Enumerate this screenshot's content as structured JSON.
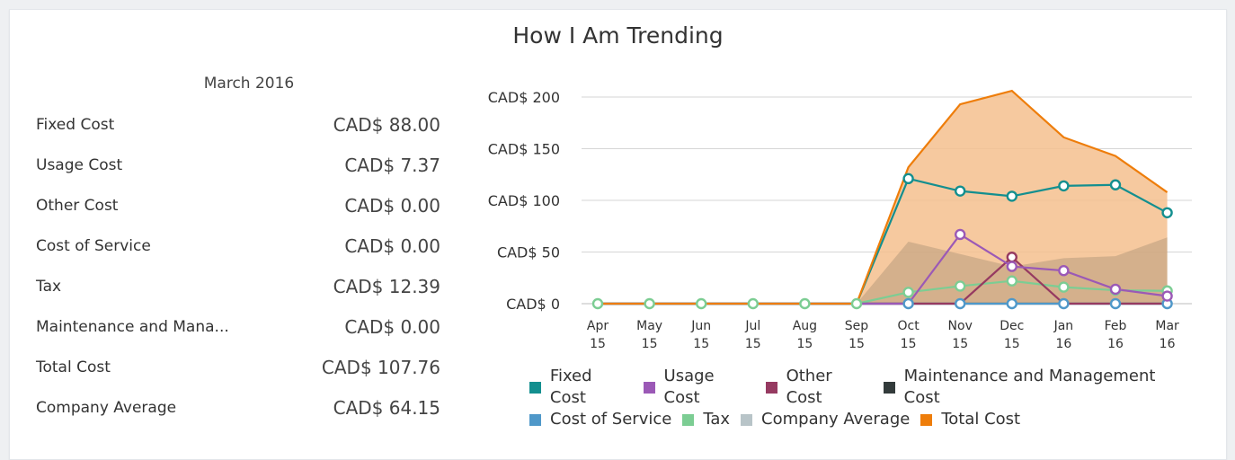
{
  "header": {
    "title": "How I Am Trending"
  },
  "summary": {
    "period": "March 2016",
    "rows": [
      {
        "label": "Fixed Cost",
        "value": "CAD$ 88.00"
      },
      {
        "label": "Usage Cost",
        "value": "CAD$ 7.37"
      },
      {
        "label": "Other Cost",
        "value": "CAD$ 0.00"
      },
      {
        "label": "Cost of Service",
        "value": "CAD$ 0.00"
      },
      {
        "label": "Tax",
        "value": "CAD$ 12.39"
      },
      {
        "label": "Maintenance and Mana...",
        "value": "CAD$ 0.00"
      },
      {
        "label": "Total Cost",
        "value": "CAD$ 107.76"
      },
      {
        "label": "Company Average",
        "value": "CAD$ 64.15"
      }
    ]
  },
  "chart_data": {
    "type": "line",
    "x": [
      "Apr 15",
      "May 15",
      "Jun 15",
      "Jul 15",
      "Aug 15",
      "Sep 15",
      "Oct 15",
      "Nov 15",
      "Dec 15",
      "Jan 16",
      "Feb 16",
      "Mar 16"
    ],
    "x_ticks": [
      [
        "Apr",
        "15"
      ],
      [
        "May",
        "15"
      ],
      [
        "Jun",
        "15"
      ],
      [
        "Jul",
        "15"
      ],
      [
        "Aug",
        "15"
      ],
      [
        "Sep",
        "15"
      ],
      [
        "Oct",
        "15"
      ],
      [
        "Nov",
        "15"
      ],
      [
        "Dec",
        "15"
      ],
      [
        "Jan",
        "16"
      ],
      [
        "Feb",
        "16"
      ],
      [
        "Mar",
        "16"
      ]
    ],
    "ylim": [
      0,
      200
    ],
    "y_ticks": [
      0,
      50,
      100,
      150,
      200
    ],
    "y_tick_labels": [
      "CAD$ 0",
      "CAD$ 50",
      "CAD$ 100",
      "CAD$ 150",
      "CAD$ 200"
    ],
    "grid": true,
    "legend_position": "bottom",
    "series": [
      {
        "name": "Fixed Cost",
        "color": "#138f8f",
        "values": [
          0,
          0,
          0,
          0,
          0,
          0,
          121,
          109,
          104,
          114,
          115,
          88
        ]
      },
      {
        "name": "Usage Cost",
        "color": "#9b59b6",
        "values": [
          0,
          0,
          0,
          0,
          0,
          0,
          0,
          67,
          36,
          32,
          14,
          7.37
        ]
      },
      {
        "name": "Other Cost",
        "color": "#963a61",
        "values": [
          0,
          0,
          0,
          0,
          0,
          0,
          0,
          0,
          45,
          0,
          0,
          0
        ]
      },
      {
        "name": "Maintenance and Management Cost",
        "color": "#333b3b",
        "values": [
          0,
          0,
          0,
          0,
          0,
          0,
          0,
          0,
          0,
          0,
          0,
          0
        ]
      },
      {
        "name": "Cost of Service",
        "color": "#4f98c9",
        "values": [
          0,
          0,
          0,
          0,
          0,
          0,
          0,
          0,
          0,
          0,
          0,
          0
        ]
      },
      {
        "name": "Tax",
        "color": "#7ccd93",
        "values": [
          0,
          0,
          0,
          0,
          0,
          0,
          11,
          17,
          22,
          16,
          13,
          12.39
        ]
      },
      {
        "name": "Company Average",
        "color": "#b8c4c8",
        "values": [
          0,
          0,
          0,
          0,
          0,
          0,
          60,
          48,
          36,
          44,
          46,
          64.15
        ]
      },
      {
        "name": "Total Cost",
        "color": "#ee7d0a",
        "values": [
          0,
          0,
          0,
          0,
          0,
          0,
          132,
          193,
          206,
          161,
          143,
          107.76
        ]
      }
    ]
  }
}
